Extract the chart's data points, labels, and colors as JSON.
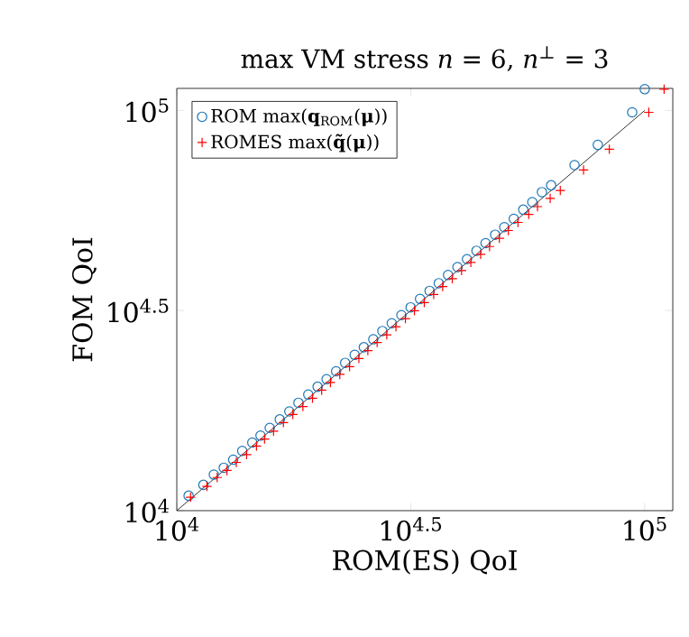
{
  "chart_data": {
    "type": "scatter",
    "title": "max VM stress *n* = 6, *n*$^{⊥}$ = 3",
    "xlabel": "ROM(ES) QoI",
    "ylabel": "FOM QoI",
    "log": "xy",
    "legend": "top left",
    "grid": false,
    "xlim": [
      10000,
      114800
    ],
    "ylim": [
      10000,
      113500
    ],
    "xticks": [
      {
        "value": 10000,
        "label": "10$^{4}$"
      },
      {
        "value": 31623,
        "label": "10$^{4.5}$"
      },
      {
        "value": 100000,
        "label": "10$^{5}$"
      }
    ],
    "yticks": [
      {
        "value": 10000,
        "label": "10$^{4}$"
      },
      {
        "value": 31623,
        "label": "10$^{4.5}$"
      },
      {
        "value": 100000,
        "label": "10$^{5}$"
      }
    ],
    "series": [
      {
        "name": "ROM max(**q**$_{ROM}$(**μ**))",
        "color": "#1f77b4",
        "marker": "circle",
        "x": [
          10600,
          11400,
          12000,
          12600,
          13200,
          13800,
          14500,
          15100,
          15800,
          16600,
          17400,
          18200,
          19100,
          20000,
          20900,
          21900,
          22900,
          24000,
          25100,
          26300,
          27500,
          28800,
          30200,
          31600,
          33100,
          34700,
          36300,
          38000,
          39800,
          41700,
          43700,
          45700,
          47900,
          50100,
          52500,
          55000,
          57500,
          60300,
          63100,
          70800,
          79400,
          94000,
          100000
        ],
        "values": [
          10900,
          11600,
          12300,
          12800,
          13400,
          14100,
          14800,
          15400,
          16100,
          16900,
          17700,
          18600,
          19500,
          20400,
          21300,
          22300,
          23400,
          24500,
          25600,
          26800,
          28100,
          29400,
          30800,
          32200,
          33800,
          35400,
          37000,
          38800,
          40600,
          42500,
          44600,
          46600,
          48900,
          51100,
          53600,
          56500,
          59000,
          62500,
          65000,
          73000,
          82000,
          98900,
          113000
        ]
      },
      {
        "name": "ROMES max(**q̃**(**μ**))",
        "color": "#ff0000",
        "marker": "cross",
        "x": [
          10700,
          11600,
          12200,
          12800,
          13400,
          14100,
          14800,
          15400,
          16100,
          16900,
          17700,
          18600,
          19500,
          20400,
          21300,
          22300,
          23400,
          24500,
          25600,
          26800,
          28100,
          29400,
          30800,
          32200,
          33800,
          35400,
          37000,
          38800,
          40600,
          42500,
          44600,
          46600,
          48900,
          51100,
          53600,
          56500,
          59000,
          62800,
          66000,
          74000,
          84000,
          102000,
          110000
        ],
        "values": [
          10800,
          11500,
          12100,
          12600,
          13200,
          13800,
          14500,
          15100,
          15800,
          16600,
          17400,
          18200,
          19100,
          20000,
          20900,
          21900,
          22900,
          24000,
          25100,
          26300,
          27500,
          28800,
          30200,
          31600,
          33100,
          34700,
          36300,
          38000,
          39800,
          41700,
          43700,
          45700,
          47900,
          50100,
          52500,
          55000,
          57500,
          60300,
          63100,
          71000,
          80000,
          98900,
          113000
        ]
      },
      {
        "type": "line",
        "color": "#000000",
        "marker": "none",
        "x": [
          10000,
          100000
        ],
        "values": [
          10000,
          100000
        ]
      }
    ]
  }
}
